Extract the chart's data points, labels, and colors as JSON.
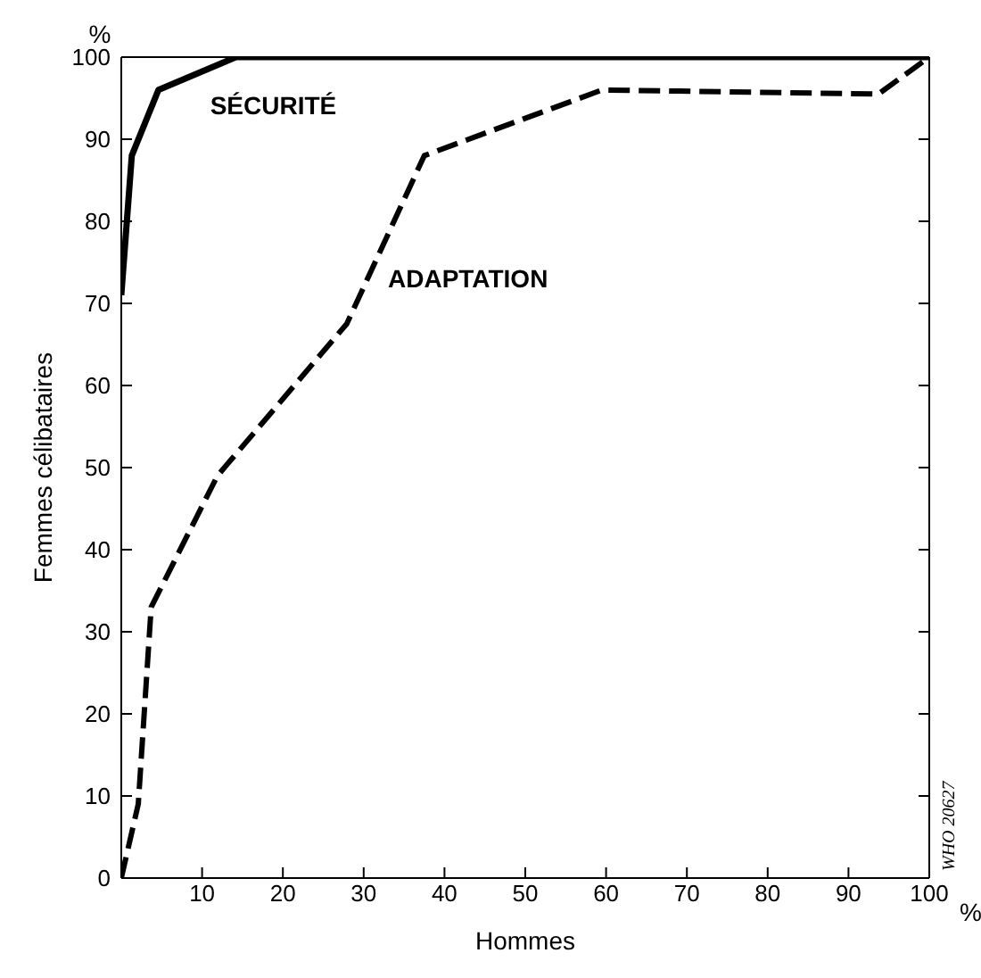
{
  "chart_data": {
    "type": "line",
    "xlabel": "Hommes",
    "ylabel": "Femmes célibataires",
    "annotations": [
      "%",
      "%",
      "WHO 20627"
    ],
    "xlim": [
      0,
      100
    ],
    "ylim": [
      0,
      100
    ],
    "xticks": [
      10,
      20,
      30,
      40,
      50,
      60,
      70,
      80,
      90,
      100
    ],
    "yticks": [
      0,
      10,
      20,
      30,
      40,
      50,
      60,
      70,
      80,
      90,
      100
    ],
    "legend": false,
    "marker": "none",
    "series": [
      {
        "name": "SÉCURITÉ",
        "color": "#000000",
        "line_style": "solid",
        "x": [
          0,
          1.3,
          4.6,
          14.2,
          100
        ],
        "values": [
          71,
          88,
          96,
          100,
          100
        ]
      },
      {
        "name": "ADAPTATION",
        "color": "#000000",
        "line_style": "dashed",
        "x": [
          0,
          2.1,
          3.7,
          11.9,
          27.9,
          37.5,
          59.5,
          93.7,
          100
        ],
        "values": [
          0,
          9,
          33,
          49,
          67.5,
          88,
          96,
          95.5,
          100
        ]
      }
    ]
  }
}
